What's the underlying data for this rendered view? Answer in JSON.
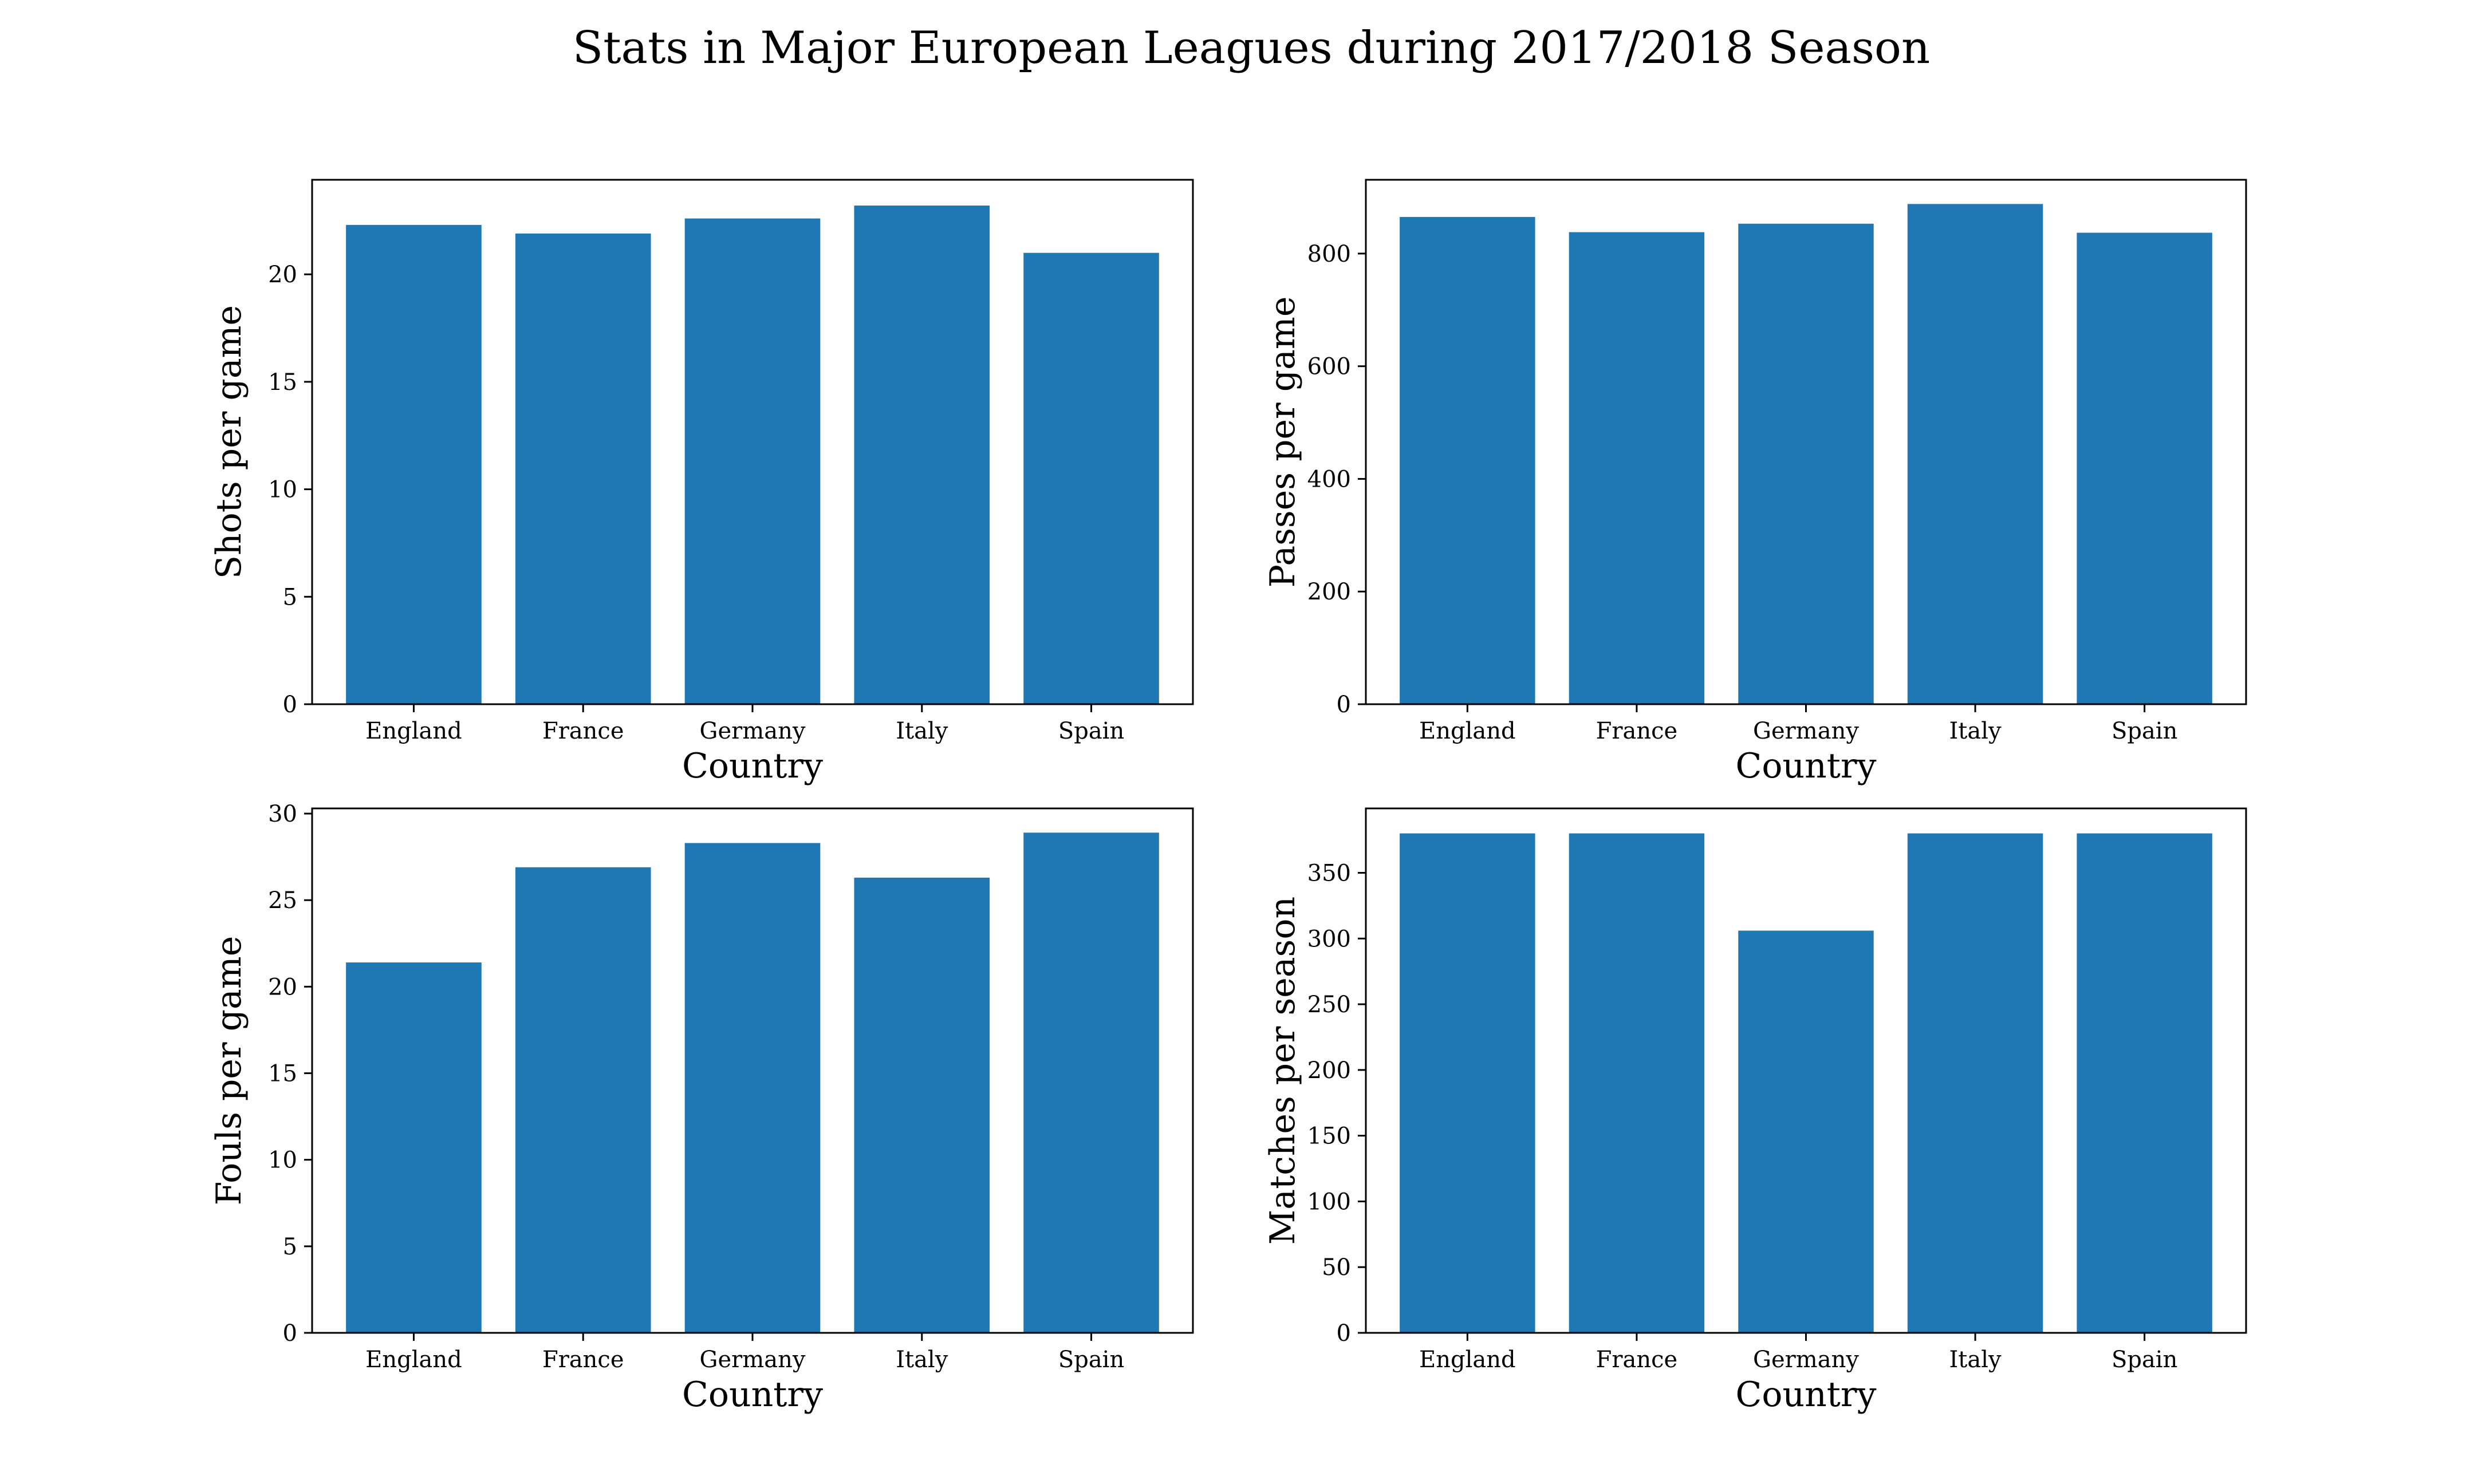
{
  "title": "Stats in Major European Leagues during 2017/2018 Season",
  "colors": {
    "bar": "#1f77b4",
    "background": "#ffffff",
    "axes": "#000000"
  },
  "chart_data": [
    {
      "type": "bar",
      "categories": [
        "England",
        "France",
        "Germany",
        "Italy",
        "Spain"
      ],
      "values": [
        22.3,
        21.9,
        22.6,
        23.2,
        21.0
      ],
      "xlabel": "Country",
      "ylabel": "Shots per game",
      "ylim": [
        0,
        24.4
      ],
      "yticks": [
        0,
        5,
        10,
        15,
        20
      ],
      "grid": false
    },
    {
      "type": "bar",
      "categories": [
        "England",
        "France",
        "Germany",
        "Italy",
        "Spain"
      ],
      "values": [
        865,
        838,
        853,
        888,
        837
      ],
      "xlabel": "Country",
      "ylabel": "Passes per game",
      "ylim": [
        0,
        931
      ],
      "yticks": [
        0,
        200,
        400,
        600,
        800
      ],
      "grid": false
    },
    {
      "type": "bar",
      "categories": [
        "England",
        "France",
        "Germany",
        "Italy",
        "Spain"
      ],
      "values": [
        21.4,
        26.9,
        28.3,
        26.3,
        28.9
      ],
      "xlabel": "Country",
      "ylabel": "Fouls per game",
      "ylim": [
        0,
        30.3
      ],
      "yticks": [
        0,
        5,
        10,
        15,
        20,
        25,
        30
      ],
      "grid": false
    },
    {
      "type": "bar",
      "categories": [
        "England",
        "France",
        "Germany",
        "Italy",
        "Spain"
      ],
      "values": [
        380,
        380,
        306,
        380,
        380
      ],
      "xlabel": "Country",
      "ylabel": "Matches per season",
      "ylim": [
        0,
        399
      ],
      "yticks": [
        0,
        50,
        100,
        150,
        200,
        250,
        300,
        350
      ],
      "grid": false
    }
  ]
}
